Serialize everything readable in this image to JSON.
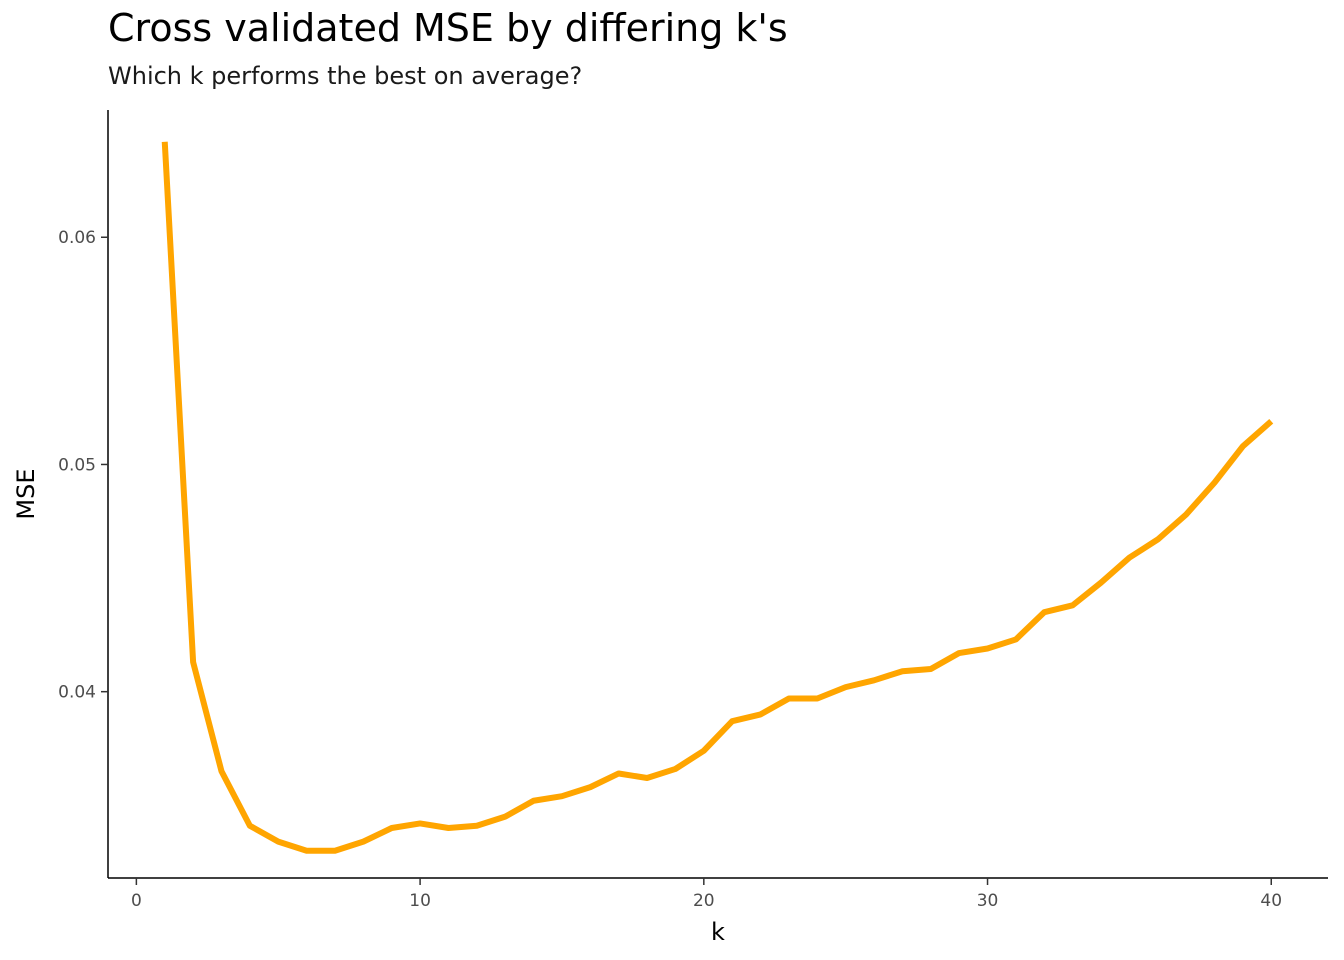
{
  "chart_data": {
    "type": "line",
    "title": "Cross validated MSE by differing k's",
    "subtitle": "Which k performs the best on average?",
    "xlabel": "k",
    "ylabel": "MSE",
    "xlim": [
      -1,
      42
    ],
    "ylim": [
      0.0318,
      0.0656
    ],
    "xticks": [
      0,
      10,
      20,
      30,
      40
    ],
    "yticks": [
      0.04,
      0.05,
      0.06
    ],
    "xtick_labels": [
      "0",
      "10",
      "20",
      "30",
      "40"
    ],
    "ytick_labels": [
      "0.04",
      "0.05",
      "0.06"
    ],
    "grid": false,
    "line_color": "#FFA500",
    "x": [
      1,
      2,
      3,
      4,
      5,
      6,
      7,
      8,
      9,
      10,
      11,
      12,
      13,
      14,
      15,
      16,
      17,
      18,
      19,
      20,
      21,
      22,
      23,
      24,
      25,
      26,
      27,
      28,
      29,
      30,
      31,
      32,
      33,
      34,
      35,
      36,
      37,
      38,
      39,
      40
    ],
    "y": [
      0.0642,
      0.0413,
      0.0365,
      0.0341,
      0.0334,
      0.033,
      0.033,
      0.0334,
      0.034,
      0.0342,
      0.034,
      0.0341,
      0.0345,
      0.0352,
      0.0354,
      0.0358,
      0.0364,
      0.0362,
      0.0366,
      0.0374,
      0.0387,
      0.039,
      0.0397,
      0.0397,
      0.0402,
      0.0405,
      0.0409,
      0.041,
      0.0417,
      0.0419,
      0.0423,
      0.0435,
      0.0438,
      0.0448,
      0.0459,
      0.0467,
      0.0478,
      0.0492,
      0.0508,
      0.0519
    ]
  }
}
